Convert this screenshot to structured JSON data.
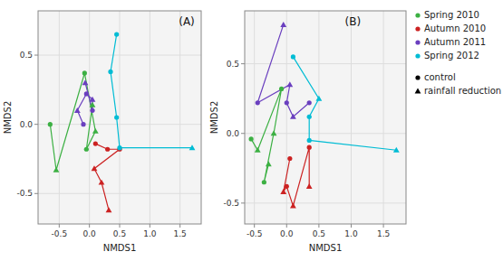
{
  "chart_data": [
    {
      "type": "line",
      "xlabel": "NMDS1",
      "ylabel": "NMDS2",
      "xlim": [
        -0.85,
        1.85
      ],
      "ylim": [
        -0.72,
        0.82
      ],
      "xticks": [
        -0.5,
        {
          "value": 0,
          "label": "0.0"
        },
        0.5,
        {
          "value": 1,
          "label": "1.0"
        },
        1.5
      ],
      "yticks": [
        -0.5,
        {
          "value": 0,
          "label": "0.0"
        },
        0.5
      ],
      "grid": true,
      "annotations": [
        "(A)"
      ],
      "series": [
        {
          "color": "#3cb043",
          "x": [
            -0.65,
            -0.55,
            -0.08,
            0.1,
            -0.05,
            0.05
          ],
          "values": [
            0.0,
            -0.33,
            0.37,
            -0.05,
            -0.18,
            0.14
          ],
          "markers": [
            "circle",
            "triangle",
            "circle",
            "triangle",
            "circle",
            "triangle"
          ]
        },
        {
          "color": "#cc2222",
          "x": [
            0.1,
            0.3,
            0.5,
            0.08,
            0.2,
            0.32
          ],
          "values": [
            -0.14,
            -0.18,
            -0.18,
            -0.32,
            -0.42,
            -0.62
          ],
          "markers": [
            "circle",
            "circle",
            "circle",
            "triangle",
            "triangle",
            "triangle"
          ]
        },
        {
          "color": "#6a3fbf",
          "x": [
            -0.1,
            -0.2,
            -0.05,
            0.05,
            0.05,
            -0.07
          ],
          "values": [
            0.0,
            0.1,
            0.22,
            0.18,
            0.1,
            0.3
          ],
          "markers": [
            "circle",
            "triangle",
            "circle",
            "triangle",
            "circle",
            "triangle"
          ]
        },
        {
          "color": "#00bcd4",
          "x": [
            0.45,
            0.35,
            0.45,
            0.5,
            1.7
          ],
          "values": [
            0.65,
            0.38,
            0.05,
            -0.17,
            -0.17
          ],
          "markers": [
            "circle",
            "circle",
            "circle",
            "circle",
            "triangle"
          ]
        }
      ]
    },
    {
      "type": "line",
      "xlabel": "NMDS1",
      "ylabel": "NMDS2",
      "xlim": [
        -0.65,
        1.85
      ],
      "ylim": [
        -0.65,
        0.88
      ],
      "xticks": [
        -0.5,
        {
          "value": 0,
          "label": "0.0"
        },
        0.5,
        {
          "value": 1,
          "label": "1.0"
        },
        1.5
      ],
      "yticks": [
        -0.5,
        {
          "value": 0,
          "label": "0.0"
        },
        0.5
      ],
      "grid": true,
      "legend": "right",
      "annotations": [
        "(B)"
      ],
      "treatments": [
        {
          "name": "control",
          "marker": "circle",
          "color": "#000000"
        },
        {
          "name": "rainfall reduction",
          "marker": "triangle",
          "color": "#000000"
        }
      ],
      "series": [
        {
          "name": "Spring 2010",
          "color": "#3cb043",
          "x": [
            -0.55,
            -0.45,
            -0.08,
            -0.2,
            -0.35,
            -0.28
          ],
          "values": [
            -0.04,
            -0.12,
            0.32,
            0.0,
            -0.35,
            -0.22
          ],
          "markers": [
            "circle",
            "triangle",
            "circle",
            "triangle",
            "circle",
            "triangle"
          ]
        },
        {
          "name": "Autumn 2010",
          "color": "#cc2222",
          "x": [
            0.05,
            -0.05,
            0.0,
            0.1,
            0.35,
            0.35
          ],
          "values": [
            -0.18,
            -0.42,
            -0.38,
            -0.52,
            -0.1,
            -0.38
          ],
          "markers": [
            "circle",
            "triangle",
            "circle",
            "triangle",
            "circle",
            "triangle"
          ]
        },
        {
          "name": "Autumn 2011",
          "color": "#6a3fbf",
          "x": [
            -0.05,
            -0.45,
            0.05,
            0.0,
            0.1,
            0.35
          ],
          "values": [
            0.78,
            0.22,
            0.35,
            0.22,
            0.12,
            0.22
          ],
          "markers": [
            "triangle",
            "circle",
            "triangle",
            "circle",
            "triangle",
            "circle"
          ]
        },
        {
          "name": "Spring 2012",
          "color": "#00bcd4",
          "x": [
            0.1,
            0.5,
            0.35,
            0.35,
            1.7
          ],
          "values": [
            0.55,
            0.25,
            0.12,
            -0.05,
            -0.12
          ],
          "markers": [
            "circle",
            "triangle",
            "circle",
            "circle",
            "triangle"
          ]
        }
      ]
    }
  ]
}
